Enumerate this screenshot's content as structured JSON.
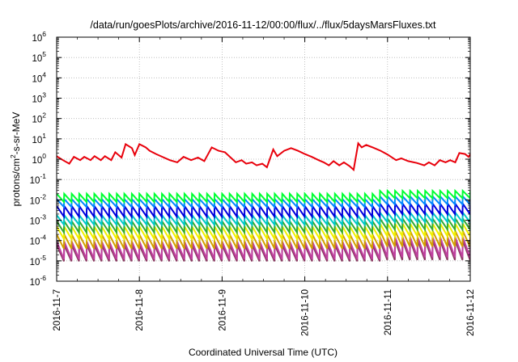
{
  "chart_data": {
    "type": "line",
    "title": "/data/run/goesPlots/archive/2016-11-12/00:00/flux/../flux/5daysMarsFluxes.txt",
    "xlabel": "Coordinated Universal Time (UTC)",
    "ylabel": "protons/cm2-s-sr-MeV",
    "ylabel_parts": {
      "base": "protons/cm",
      "sup": "2",
      "rest": "-s-sr-MeV"
    },
    "y_scale": "log",
    "ylim": [
      1e-06,
      1000000.0
    ],
    "y_ticks": [
      {
        "base": "10",
        "exp": "-6",
        "v": -6
      },
      {
        "base": "10",
        "exp": "-5",
        "v": -5
      },
      {
        "base": "10",
        "exp": "-4",
        "v": -4
      },
      {
        "base": "10",
        "exp": "-3",
        "v": -3
      },
      {
        "base": "10",
        "exp": "-2",
        "v": -2
      },
      {
        "base": "10",
        "exp": "-1",
        "v": -1
      },
      {
        "base": "10",
        "exp": "0",
        "v": 0
      },
      {
        "base": "10",
        "exp": "1",
        "v": 1
      },
      {
        "base": "10",
        "exp": "2",
        "v": 2
      },
      {
        "base": "10",
        "exp": "3",
        "v": 3
      },
      {
        "base": "10",
        "exp": "4",
        "v": 4
      },
      {
        "base": "10",
        "exp": "5",
        "v": 5
      },
      {
        "base": "10",
        "exp": "6",
        "v": 6
      }
    ],
    "x_range": [
      "2016-11-07",
      "2016-11-12"
    ],
    "x_ticks": [
      "2016-11-7",
      "2016-11-8",
      "2016-11-9",
      "2016-11-10",
      "2016-11-11",
      "2016-11-12"
    ],
    "grid": true,
    "series": [
      {
        "color": "#e8000b",
        "x": [
          "2016-11-07T00:00",
          "2016-11-07T01:50",
          "2016-11-07T03:40",
          "2016-11-07T05:00",
          "2016-11-07T06:50",
          "2016-11-07T08:00",
          "2016-11-07T09:50",
          "2016-11-07T11:00",
          "2016-11-07T12:50",
          "2016-11-07T14:00",
          "2016-11-07T15:50",
          "2016-11-07T17:00",
          "2016-11-07T18:50",
          "2016-11-07T20:00",
          "2016-11-07T21:50",
          "2016-11-07T22:40",
          "2016-11-08T00:00",
          "2016-11-08T01:50",
          "2016-11-08T03:00",
          "2016-11-08T04:50",
          "2016-11-08T06:40",
          "2016-11-08T08:50",
          "2016-11-08T11:00",
          "2016-11-08T12:50",
          "2016-11-08T15:00",
          "2016-11-08T17:00",
          "2016-11-08T18:50",
          "2016-11-08T21:00",
          "2016-11-08T23:00",
          "2016-11-09T00:50",
          "2016-11-09T02:30",
          "2016-11-09T04:00",
          "2016-11-09T05:40",
          "2016-11-09T07:00",
          "2016-11-09T08:40",
          "2016-11-09T10:00",
          "2016-11-09T11:40",
          "2016-11-09T13:00",
          "2016-11-09T14:50",
          "2016-11-09T16:00",
          "2016-11-09T18:00",
          "2016-11-09T20:00",
          "2016-11-09T22:00",
          "2016-11-10T00:00",
          "2016-11-10T02:00",
          "2016-11-10T04:00",
          "2016-11-10T05:30",
          "2016-11-10T07:00",
          "2016-11-10T08:20",
          "2016-11-10T10:00",
          "2016-11-10T11:20",
          "2016-11-10T13:00",
          "2016-11-10T14:10",
          "2016-11-10T15:30",
          "2016-11-10T16:30",
          "2016-11-10T17:50",
          "2016-11-10T19:50",
          "2016-11-10T22:00",
          "2016-11-11T00:00",
          "2016-11-11T02:30",
          "2016-11-11T04:00",
          "2016-11-11T06:00",
          "2016-11-11T08:30",
          "2016-11-11T10:40",
          "2016-11-11T12:00",
          "2016-11-11T13:40",
          "2016-11-11T15:10",
          "2016-11-11T16:50",
          "2016-11-11T18:10",
          "2016-11-11T19:40",
          "2016-11-11T20:50",
          "2016-11-11T22:30",
          "2016-11-11T23:30",
          "2016-11-12T00:40",
          "2016-11-12T01:30",
          "2016-11-12T03:00"
        ],
        "y": [
          1.4,
          0.9,
          0.6,
          1.3,
          0.9,
          1.3,
          0.9,
          1.4,
          0.9,
          1.4,
          0.9,
          2.2,
          1.2,
          5.5,
          3.5,
          1.6,
          5.5,
          3.8,
          2.6,
          1.8,
          1.3,
          0.9,
          0.7,
          1.3,
          0.9,
          1.2,
          0.8,
          3.8,
          2.6,
          2.2,
          1.2,
          0.7,
          0.9,
          0.6,
          0.7,
          0.5,
          0.6,
          0.4,
          3.0,
          1.4,
          2.6,
          3.5,
          2.6,
          1.8,
          1.3,
          0.9,
          0.7,
          0.5,
          0.8,
          0.5,
          0.7,
          0.45,
          0.3,
          6.0,
          3.8,
          5.0,
          3.7,
          2.6,
          1.7,
          0.9,
          1.1,
          0.8,
          0.65,
          0.5,
          0.7,
          0.5,
          0.9,
          0.7,
          0.9,
          0.7,
          2.0,
          1.8,
          1.3,
          2.6,
          2.2,
          1.3
        ]
      },
      {
        "color": "#00ff33",
        "teeth_per_day": 11,
        "peak": 0.02,
        "trough": 0.008,
        "late_peak": 0.028,
        "late_trough": 0.012
      },
      {
        "color": "#0088ff",
        "teeth_per_day": 11,
        "peak": 0.011,
        "trough": 0.0045,
        "late_peak": 0.015,
        "late_trough": 0.006
      },
      {
        "color": "#0000dd",
        "teeth_per_day": 11,
        "peak": 0.005,
        "trough": 0.0015,
        "late_peak": 0.0065,
        "late_trough": 0.002
      },
      {
        "color": "#00c8c8",
        "teeth_per_day": 11,
        "peak": 0.0018,
        "trough": 0.0006,
        "late_peak": 0.0024,
        "late_trough": 0.0008
      },
      {
        "color": "#33aa33",
        "teeth_per_day": 11,
        "peak": 0.0009,
        "trough": 0.00025,
        "late_peak": 0.0012,
        "late_trough": 0.00035
      },
      {
        "color": "#f0f000",
        "teeth_per_day": 11,
        "peak": 0.0005,
        "trough": 0.00012,
        "late_peak": 0.0007,
        "late_trough": 0.00016
      },
      {
        "color": "#d2a000",
        "teeth_per_day": 11,
        "peak": 0.0002,
        "trough": 4e-05,
        "late_peak": 0.0003,
        "late_trough": 5e-05
      },
      {
        "color": "#c040a0",
        "teeth_per_day": 11,
        "peak": 9e-05,
        "trough": 1.2e-05,
        "late_peak": 0.00015,
        "late_trough": 1.5e-05
      },
      {
        "color": "#8b3a62",
        "teeth_per_day": 11,
        "peak": 6e-05,
        "trough": 9.5e-06,
        "late_peak": 0.0001,
        "late_trough": 1.1e-05
      }
    ]
  }
}
